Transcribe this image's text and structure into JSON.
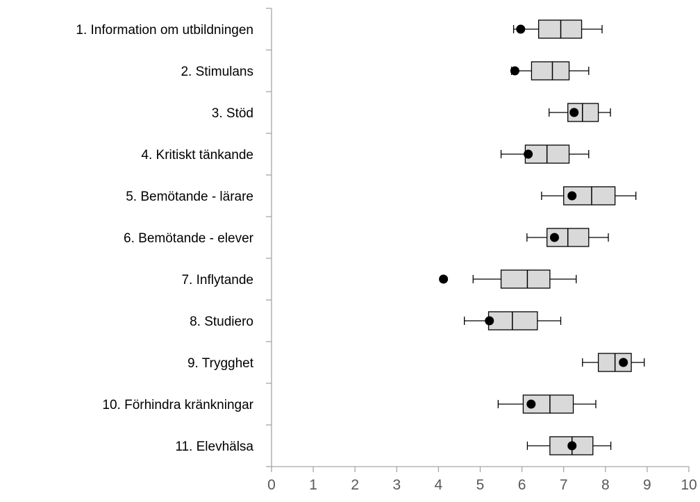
{
  "chart_data": {
    "type": "boxplot",
    "orientation": "horizontal",
    "categories": [
      "1. Information om utbildningen",
      "2. Stimulans",
      "3. Stöd",
      "4. Kritiskt tänkande",
      "5. Bemötande - lärare",
      "6. Bemötande - elever",
      "7. Inflytande",
      "8. Studiero",
      "9. Trygghet",
      "10. Förhindra kränkningar",
      "11. Elevhälsa"
    ],
    "boxes": [
      {
        "min": 5.8,
        "q1": 6.4,
        "median": 6.93,
        "q3": 7.43,
        "max": 7.92
      },
      {
        "min": 5.75,
        "q1": 6.23,
        "median": 6.73,
        "q3": 7.13,
        "max": 7.6
      },
      {
        "min": 6.65,
        "q1": 7.1,
        "median": 7.45,
        "q3": 7.83,
        "max": 8.12
      },
      {
        "min": 5.5,
        "q1": 6.08,
        "median": 6.6,
        "q3": 7.13,
        "max": 7.6
      },
      {
        "min": 6.47,
        "q1": 7.0,
        "median": 7.67,
        "q3": 8.23,
        "max": 8.73
      },
      {
        "min": 6.12,
        "q1": 6.6,
        "median": 7.1,
        "q3": 7.6,
        "max": 8.07
      },
      {
        "min": 4.83,
        "q1": 5.5,
        "median": 6.13,
        "q3": 6.67,
        "max": 7.3
      },
      {
        "min": 4.62,
        "q1": 5.2,
        "median": 5.77,
        "q3": 6.37,
        "max": 6.93
      },
      {
        "min": 7.45,
        "q1": 7.83,
        "median": 8.23,
        "q3": 8.62,
        "max": 8.93
      },
      {
        "min": 5.43,
        "q1": 6.03,
        "median": 6.67,
        "q3": 7.23,
        "max": 7.77
      },
      {
        "min": 6.13,
        "q1": 6.67,
        "median": 7.2,
        "q3": 7.7,
        "max": 8.13
      }
    ],
    "points": [
      5.97,
      5.83,
      7.25,
      6.15,
      7.2,
      6.78,
      4.12,
      5.22,
      8.43,
      6.22,
      7.2
    ],
    "xlim": [
      0,
      10
    ],
    "xticks": [
      "0",
      "1",
      "2",
      "3",
      "4",
      "5",
      "6",
      "7",
      "8",
      "9",
      "10"
    ],
    "grid": false,
    "colors": {
      "box_fill": "#d9d9d9",
      "box_stroke": "#000000",
      "point": "#000000",
      "axis": "#a6a6a6",
      "tick_text": "#595959"
    }
  }
}
